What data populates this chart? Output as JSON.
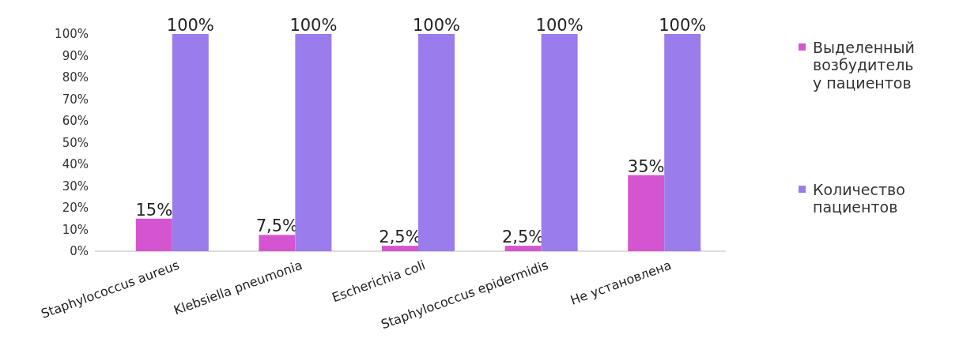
{
  "chart_data": {
    "type": "bar",
    "categories": [
      "Staphylococcus aureus",
      "Klebsiella pneumonia",
      "Escherichia coli",
      "Staphylococcus epidermidis",
      "Не установлена"
    ],
    "series": [
      {
        "name": "Выделенный возбудитель у пациентов",
        "color": "#d455cf",
        "values": [
          15,
          7.5,
          2.5,
          2.5,
          35
        ],
        "value_labels": [
          "15%",
          "7,5%",
          "2,5%",
          "2,5%",
          "35%"
        ]
      },
      {
        "name": "Количество пациентов",
        "color": "#9b7cec",
        "values": [
          100,
          100,
          100,
          100,
          100
        ],
        "value_labels": [
          "100%",
          "100%",
          "100%",
          "100%",
          "100%"
        ]
      }
    ],
    "ylim": [
      0,
      100
    ],
    "yticks": [
      {
        "value": 0,
        "label": "0%"
      },
      {
        "value": 10,
        "label": "10%"
      },
      {
        "value": 20,
        "label": "20%"
      },
      {
        "value": 30,
        "label": "30%"
      },
      {
        "value": 40,
        "label": "40%"
      },
      {
        "value": 50,
        "label": "50%"
      },
      {
        "value": 60,
        "label": "60%"
      },
      {
        "value": 70,
        "label": "70%"
      },
      {
        "value": 80,
        "label": "80%"
      },
      {
        "value": 90,
        "label": "90%"
      },
      {
        "value": 100,
        "label": "100%"
      }
    ],
    "legend": "right",
    "grid": false
  }
}
